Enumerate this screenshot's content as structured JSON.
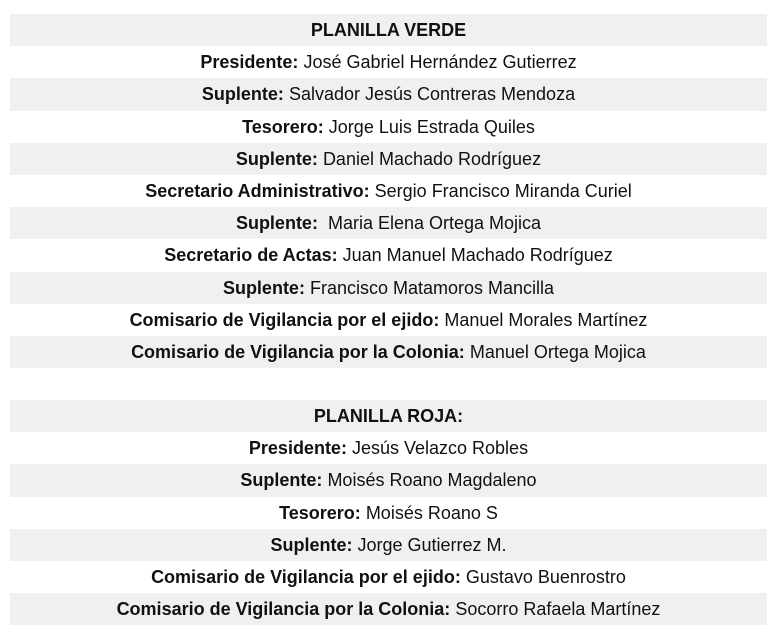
{
  "planilla_verde": {
    "title": "PLANILLA VERDE",
    "rows": [
      {
        "role": "Presidente:",
        "name": "José Gabriel Hernández Gutierrez"
      },
      {
        "role": "Suplente:",
        "name": "Salvador Jesús Contreras Mendoza"
      },
      {
        "role": "Tesorero:",
        "name": "Jorge Luis Estrada Quiles"
      },
      {
        "role": "Suplente:",
        "name": "Daniel Machado Rodríguez"
      },
      {
        "role": "Secretario Administrativo:",
        "name": "Sergio Francisco Miranda Curiel"
      },
      {
        "role": "Suplente:",
        "name": " Maria Elena Ortega Mojica"
      },
      {
        "role": "Secretario de Actas:",
        "name": "Juan Manuel Machado Rodríguez"
      },
      {
        "role": "Suplente:",
        "name": "Francisco Matamoros Mancilla"
      },
      {
        "role": "Comisario de Vigilancia por el ejido:",
        "name": "Manuel Morales Martínez"
      },
      {
        "role": "Comisario de Vigilancia por la Colonia:",
        "name": "Manuel Ortega Mojica"
      }
    ]
  },
  "planilla_roja": {
    "title": "PLANILLA ROJA:",
    "rows": [
      {
        "role": "Presidente:",
        "name": "Jesús Velazco Robles"
      },
      {
        "role": "Suplente:",
        "name": "Moisés Roano Magdaleno"
      },
      {
        "role": "Tesorero:",
        "name": "Moisés Roano S"
      },
      {
        "role": "Suplente:",
        "name": "Jorge Gutierrez M."
      },
      {
        "role": "Comisario de Vigilancia por el ejido:",
        "name": "Gustavo Buenrostro"
      },
      {
        "role": "Comisario de Vigilancia por la Colonia:",
        "name": "Socorro Rafaela Martínez"
      }
    ]
  }
}
